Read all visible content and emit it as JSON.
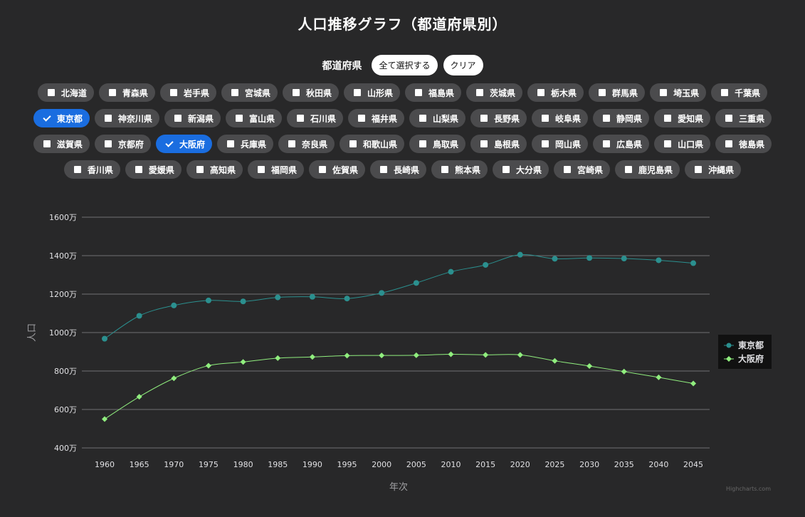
{
  "title": "人口推移グラフ（都道府県別）",
  "controls": {
    "label": "都道府県",
    "select_all": "全て選択する",
    "clear": "クリア"
  },
  "prefecture_rows": [
    [
      "北海道",
      "青森県",
      "岩手県",
      "宮城県",
      "秋田県",
      "山形県",
      "福島県",
      "茨城県",
      "栃木県",
      "群馬県",
      "埼玉県",
      "千葉県"
    ],
    [
      "東京都",
      "神奈川県",
      "新潟県",
      "富山県",
      "石川県",
      "福井県",
      "山梨県",
      "長野県",
      "岐阜県",
      "静岡県",
      "愛知県",
      "三重県"
    ],
    [
      "滋賀県",
      "京都府",
      "大阪府",
      "兵庫県",
      "奈良県",
      "和歌山県",
      "鳥取県",
      "島根県",
      "岡山県",
      "広島県",
      "山口県",
      "徳島県"
    ],
    [
      "香川県",
      "愛媛県",
      "高知県",
      "福岡県",
      "佐賀県",
      "長崎県",
      "熊本県",
      "大分県",
      "宮崎県",
      "鹿児島県",
      "沖縄県"
    ]
  ],
  "selected": [
    "東京都",
    "大阪府"
  ],
  "credit": "Highcharts.com",
  "colors": {
    "tokyo": "#2b908f",
    "osaka": "#90ee7e",
    "selected_chip": "#1a6de0"
  },
  "chart_data": {
    "type": "line",
    "xlabel": "年次",
    "ylabel": "人口",
    "x": [
      1960,
      1965,
      1970,
      1975,
      1980,
      1985,
      1990,
      1995,
      2000,
      2005,
      2010,
      2015,
      2020,
      2025,
      2030,
      2035,
      2040,
      2045
    ],
    "ylim": [
      400,
      1600
    ],
    "yticks": [
      400,
      600,
      800,
      1000,
      1200,
      1400,
      1600
    ],
    "ytick_suffix": "万",
    "grid": true,
    "legend": "right",
    "series": [
      {
        "name": "東京都",
        "color": "#2b908f",
        "marker": "circle",
        "values": [
          968,
          1087,
          1141,
          1167,
          1162,
          1183,
          1186,
          1177,
          1206,
          1258,
          1316,
          1352,
          1405,
          1384,
          1388,
          1385,
          1376,
          1361
        ]
      },
      {
        "name": "大阪府",
        "color": "#90ee7e",
        "marker": "diamond",
        "values": [
          550,
          666,
          762,
          828,
          847,
          867,
          873,
          880,
          881,
          882,
          887,
          884,
          884,
          853,
          826,
          797,
          767,
          735
        ]
      }
    ]
  }
}
